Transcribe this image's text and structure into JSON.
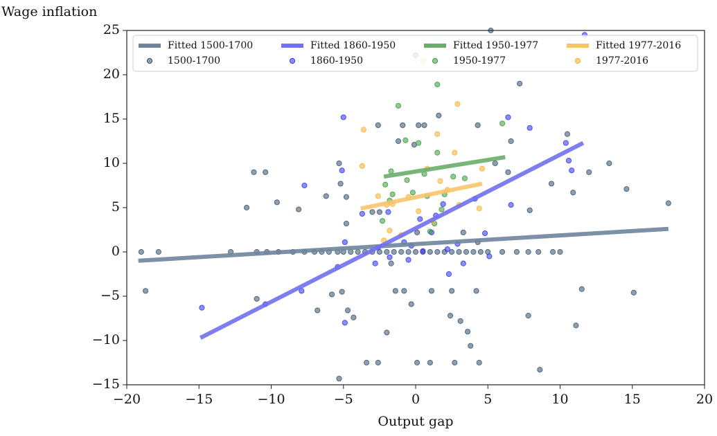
{
  "chart_data": {
    "type": "scatter",
    "xlabel": "Output gap",
    "ylabel": "Wage inflation",
    "xlim": [
      -20,
      20
    ],
    "ylim": [
      -15,
      25
    ],
    "xticks": [
      {
        "value": -20,
        "label": "−20"
      },
      {
        "value": -15,
        "label": "−15"
      },
      {
        "value": -10,
        "label": "−10"
      },
      {
        "value": -5,
        "label": "−5"
      },
      0,
      5,
      10,
      15,
      20
    ],
    "yticks": [
      {
        "value": -15,
        "label": "−15"
      },
      {
        "value": -10,
        "label": "−10"
      },
      {
        "value": -5,
        "label": "−5"
      },
      0,
      5,
      10,
      15,
      20,
      25
    ],
    "grid": false,
    "legend": "upper center",
    "series": [
      {
        "name": "Fitted 1500-1700",
        "type": "line",
        "color": "#6e859c",
        "x": [
          -19.2,
          17.5
        ],
        "values": [
          -1.0,
          2.6
        ]
      },
      {
        "name": "1500-1700",
        "type": "scatter",
        "color": "#34506b",
        "x": [
          -19,
          -17.8,
          -12.8,
          -11,
          -10.3,
          -9.5,
          -8.5,
          -7.7,
          -7,
          -6.5,
          -6,
          -5.4,
          -5,
          -4.5,
          -4,
          -3.5,
          -3,
          -2.5,
          -2,
          -1.5,
          -1,
          -0.5,
          0,
          0.5,
          1,
          1.5,
          2,
          2.5,
          3,
          3.5,
          4,
          4.5,
          5,
          6,
          7,
          7.8,
          8.5,
          9.5,
          10,
          -18.7,
          -11.7,
          -11.2,
          -10.4,
          -9.6,
          -8.1,
          -6.2,
          -5.3,
          -5.2,
          -4.8,
          -11.0,
          -5.8,
          -6.8,
          -4.3,
          -5.3,
          -3.4,
          -2.6,
          0.1,
          1.0,
          2.7,
          4.4,
          8.6,
          -2.0,
          3.6,
          3.8,
          -4.7,
          -0.9,
          0.2,
          0.6,
          1.6,
          4.3,
          7.2,
          -2.6,
          -1.2,
          -0.1,
          5.5,
          6.6,
          6.4,
          10.5,
          10.9,
          12,
          13.4,
          14.6,
          17.5,
          9.4,
          7.9,
          11.5,
          11.1,
          15.1,
          7.8,
          2.4,
          3.1,
          1.1,
          2.5,
          4.2,
          -0.3,
          -0.8,
          -1.4,
          -5.1,
          0,
          5.2,
          -2.5,
          -3.0,
          -4.8,
          0.1,
          3.3,
          4.3,
          -1.7
        ],
        "values": [
          0,
          0,
          0,
          0,
          0,
          0,
          0,
          0,
          0,
          0,
          0,
          0,
          0,
          0,
          0,
          0,
          0,
          0,
          0,
          0,
          0,
          0,
          0,
          0,
          0,
          0,
          0,
          0,
          0,
          0,
          0,
          0,
          0,
          0,
          0,
          0,
          0,
          0,
          0,
          -4.4,
          5,
          9,
          9,
          5.6,
          4.8,
          6.3,
          10,
          7.7,
          6.2,
          -5.3,
          -4.8,
          -6.6,
          -7.4,
          -14.3,
          -12.5,
          -12.5,
          -12.5,
          -12.5,
          -12.5,
          -12.5,
          -13.3,
          -9.1,
          -9.0,
          -10.6,
          -6.6,
          14.3,
          14.3,
          14.3,
          15.4,
          14.3,
          19,
          14.3,
          12.5,
          12.1,
          10,
          12.5,
          9,
          13.3,
          6.7,
          9,
          10,
          7.1,
          5.5,
          7.7,
          4.7,
          -4.2,
          -8.3,
          -4.6,
          -7.2,
          -7.2,
          -7.8,
          -4.4,
          -4.4,
          -4.4,
          -5.9,
          -4.4,
          -4.4,
          -4.5,
          22.2,
          25,
          4.5,
          4.5,
          3.2,
          2.2,
          2.2,
          1.1,
          -1.3
        ]
      },
      {
        "name": "Fitted 1860-1950",
        "type": "line",
        "color": "#7070f0",
        "x": [
          -14.9,
          11.6
        ],
        "values": [
          -9.7,
          12.3
        ]
      },
      {
        "name": "1860-1950",
        "type": "scatter",
        "color": "#3030f0",
        "x": [
          -14.8,
          -10.4,
          -7.9,
          -7.7,
          -5.1,
          -4.9,
          -5.4,
          -4.9,
          -5,
          -3.7,
          -2.8,
          -2.6,
          -1.8,
          -0.8,
          -0.3,
          0.3,
          1.1,
          1.4,
          1.9,
          2.3,
          2.9,
          3.3,
          4.8,
          5.1,
          6.4,
          6.6,
          7.9,
          10.4,
          10.6,
          10.8,
          11.7,
          4.1,
          -1.9,
          -0.5,
          2.2,
          0.5
        ],
        "values": [
          -6.3,
          -5.9,
          -4.4,
          7.5,
          9.2,
          1.1,
          -1.7,
          -8.0,
          15.2,
          4.3,
          -1.3,
          0.5,
          -0.6,
          1.1,
          0.7,
          3.7,
          2.2,
          4.1,
          5.4,
          -2.5,
          0.9,
          -1.3,
          2.1,
          -0.5,
          15.2,
          5.3,
          14,
          12.3,
          10.3,
          9.2,
          24.5,
          6.0,
          4.5,
          -0.9,
          0.3,
          0.1
        ]
      },
      {
        "name": "Fitted 1950-1977",
        "type": "line",
        "color": "#6aac6a",
        "x": [
          -2.2,
          6.2
        ],
        "values": [
          8.5,
          10.7
        ]
      },
      {
        "name": "1950-1977",
        "type": "scatter",
        "color": "#3a9a3a",
        "x": [
          -2.1,
          -1.7,
          -1.6,
          -1.2,
          -0.7,
          -0.6,
          -0.2,
          0.6,
          0.8,
          1.0,
          1.5,
          1.5,
          1.8,
          2.0,
          2.6,
          3.4,
          6.0,
          -2.3,
          -1.8,
          0.2,
          1.3
        ],
        "values": [
          7.6,
          9.1,
          6.5,
          16.5,
          12.6,
          8.1,
          6.7,
          8.8,
          6.3,
          2.3,
          18.9,
          11.2,
          4.8,
          6.5,
          8.5,
          8.3,
          14.5,
          3.5,
          5.8,
          12.3,
          3.2
        ]
      },
      {
        "name": "Fitted 1977-2016",
        "type": "line",
        "color": "#f7c46a",
        "x": [
          -3.8,
          4.6
        ],
        "values": [
          4.9,
          7.7
        ]
      },
      {
        "name": "1977-2016",
        "type": "scatter",
        "color": "#f5b030",
        "x": [
          -3.6,
          -3.7,
          -2.6,
          -2.0,
          -1.6,
          -0.5,
          0.2,
          0.8,
          1.5,
          1.7,
          2.2,
          2.7,
          2.9,
          3.0,
          4.4,
          4.6,
          -1.0,
          -2.2,
          1.2,
          0.5,
          -1.8
        ],
        "values": [
          13.8,
          9.7,
          6.3,
          5.3,
          5.4,
          6.2,
          4.6,
          9.4,
          13.3,
          8.0,
          7.0,
          11.2,
          16.7,
          5.3,
          4.9,
          9.4,
          1.9,
          1.3,
          3.5,
          21.5,
          2.4
        ]
      }
    ]
  }
}
